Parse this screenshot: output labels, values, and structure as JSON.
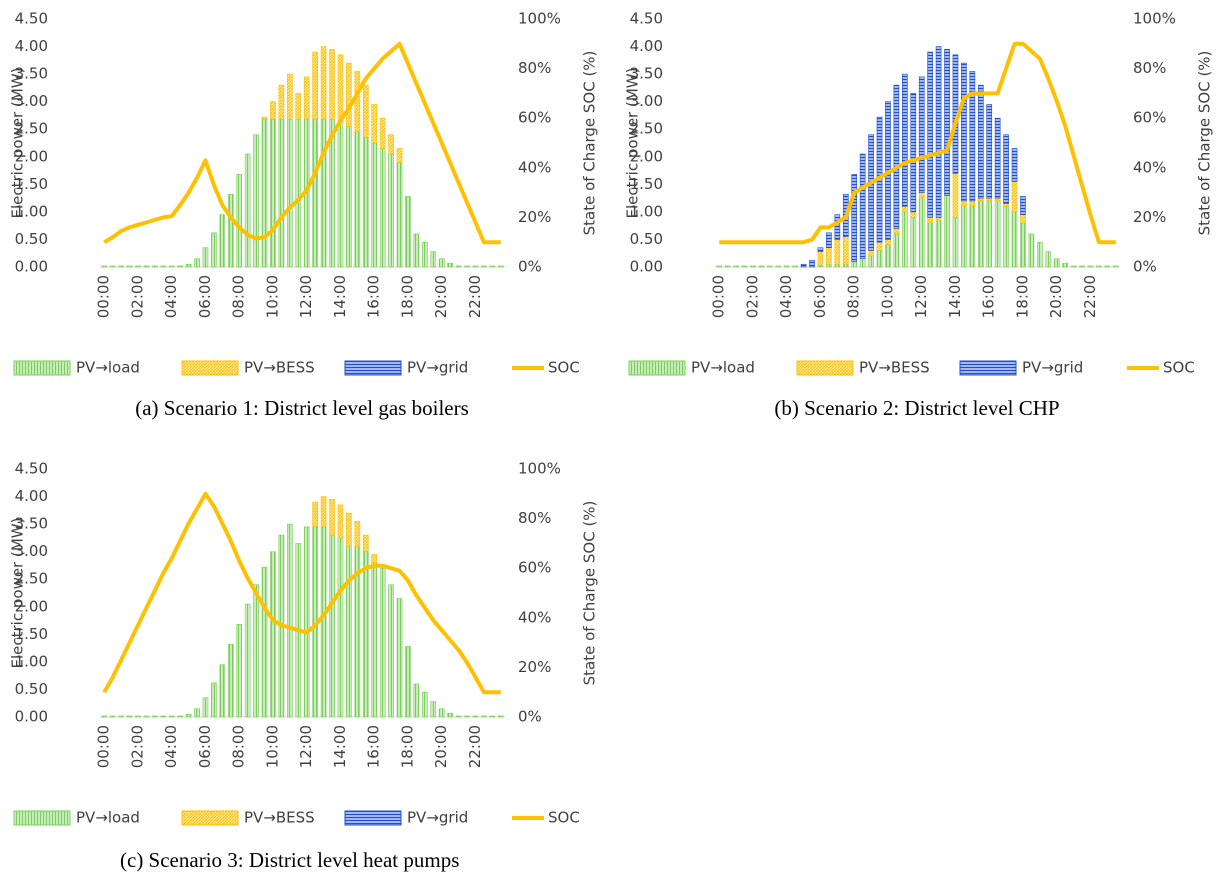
{
  "chart_data": [
    {
      "type": "bar_line",
      "caption": "(a) Scenario 1: District level gas boilers",
      "ylabel": "Electric power (MW)",
      "y2label": "State of Charge SOC (%)",
      "categories": [
        "00:00",
        null,
        null,
        null,
        "02:00",
        null,
        null,
        null,
        "04:00",
        null,
        null,
        null,
        "06:00",
        null,
        null,
        null,
        "08:00",
        null,
        null,
        null,
        "10:00",
        null,
        null,
        null,
        "12:00",
        null,
        null,
        null,
        "14:00",
        null,
        null,
        null,
        "16:00",
        null,
        null,
        null,
        "18:00",
        null,
        null,
        null,
        "20:00",
        null,
        null,
        null,
        "22:00",
        null,
        null,
        null
      ],
      "ylim": [
        0,
        4.5
      ],
      "yticks": [
        {
          "value": 0,
          "label": "0.00"
        },
        {
          "value": 0.5,
          "label": "0.50"
        },
        {
          "value": 1,
          "label": "1.00"
        },
        {
          "value": 1.5,
          "label": "1.50"
        },
        {
          "value": 2,
          "label": "2.00"
        },
        {
          "value": 2.5,
          "label": "2.50"
        },
        {
          "value": 3,
          "label": "3.00"
        },
        {
          "value": 3.5,
          "label": "3.50"
        },
        {
          "value": 4,
          "label": "4.00"
        },
        {
          "value": 4.5,
          "label": "4.50"
        }
      ],
      "y2lim": [
        0,
        100
      ],
      "y2ticks": [
        {
          "value": 0,
          "label": "0%"
        },
        {
          "value": 20,
          "label": "20%"
        },
        {
          "value": 40,
          "label": "40%"
        },
        {
          "value": 60,
          "label": "60%"
        },
        {
          "value": 80,
          "label": "80%"
        },
        {
          "value": 100,
          "label": "100%"
        }
      ],
      "legend": "bottom",
      "series": [
        {
          "name": "PV→load",
          "color": "#7ccf5a",
          "values": [
            0.02,
            0.02,
            0.02,
            0.02,
            0.02,
            0.02,
            0.02,
            0.02,
            0.02,
            0.02,
            0.05,
            0.15,
            0.35,
            0.62,
            0.95,
            1.32,
            1.68,
            2.05,
            2.4,
            2.68,
            2.68,
            2.68,
            2.68,
            2.68,
            2.68,
            2.68,
            2.68,
            2.68,
            2.65,
            2.55,
            2.45,
            2.35,
            2.25,
            2.15,
            2.05,
            1.9,
            1.28,
            0.6,
            0.45,
            0.28,
            0.15,
            0.07,
            0.02,
            0.02,
            0.02,
            0.02,
            0.02,
            0.02
          ]
        },
        {
          "name": "PV→BESS",
          "color": "#ffc000",
          "values": [
            0,
            0,
            0,
            0,
            0,
            0,
            0,
            0,
            0,
            0,
            0,
            0,
            0,
            0,
            0,
            0,
            0,
            0,
            0,
            0.04,
            0.32,
            0.62,
            0.82,
            0.47,
            0.77,
            1.22,
            1.32,
            1.27,
            1.2,
            1.15,
            1.1,
            0.95,
            0.7,
            0.55,
            0.35,
            0.25,
            0,
            0,
            0,
            0,
            0,
            0,
            0,
            0,
            0,
            0,
            0,
            0
          ]
        },
        {
          "name": "PV→grid",
          "color": "#1f4fd1",
          "values": [
            0,
            0,
            0,
            0,
            0,
            0,
            0,
            0,
            0,
            0,
            0,
            0,
            0,
            0,
            0,
            0,
            0,
            0,
            0,
            0,
            0,
            0,
            0,
            0,
            0,
            0,
            0,
            0,
            0,
            0,
            0,
            0,
            0,
            0,
            0,
            0,
            0,
            0,
            0,
            0,
            0,
            0,
            0,
            0,
            0,
            0,
            0,
            0
          ]
        },
        {
          "name": "SOC",
          "color": "#ffc000",
          "axis": "y2",
          "values": [
            10,
            12,
            14.5,
            16,
            17,
            18,
            19,
            20,
            20.5,
            25,
            30,
            36,
            43,
            33,
            25,
            20,
            16,
            13,
            11.5,
            12,
            15,
            20,
            24,
            27,
            31,
            38,
            46,
            53,
            59,
            64,
            70,
            76,
            80,
            84,
            87,
            90,
            82,
            74,
            66,
            58,
            50,
            42,
            34,
            26,
            18,
            10,
            10,
            10
          ]
        }
      ]
    },
    {
      "type": "bar_line",
      "caption": "(b) Scenario 2: District level CHP",
      "ylabel": "Electric power (MW)",
      "y2label": "State of Charge SOC (%)",
      "categories": [
        "00:00",
        null,
        null,
        null,
        "02:00",
        null,
        null,
        null,
        "04:00",
        null,
        null,
        null,
        "06:00",
        null,
        null,
        null,
        "08:00",
        null,
        null,
        null,
        "10:00",
        null,
        null,
        null,
        "12:00",
        null,
        null,
        null,
        "14:00",
        null,
        null,
        null,
        "16:00",
        null,
        null,
        null,
        "18:00",
        null,
        null,
        null,
        "20:00",
        null,
        null,
        null,
        "22:00",
        null,
        null,
        null
      ],
      "ylim": [
        0,
        4.5
      ],
      "yticks": [
        {
          "value": 0,
          "label": "0.00"
        },
        {
          "value": 0.5,
          "label": "0.50"
        },
        {
          "value": 1,
          "label": "1.00"
        },
        {
          "value": 1.5,
          "label": "1.50"
        },
        {
          "value": 2,
          "label": "2.00"
        },
        {
          "value": 2.5,
          "label": "2.50"
        },
        {
          "value": 3,
          "label": "3.00"
        },
        {
          "value": 3.5,
          "label": "3.50"
        },
        {
          "value": 4,
          "label": "4.00"
        },
        {
          "value": 4.5,
          "label": "4.50"
        }
      ],
      "y2lim": [
        0,
        100
      ],
      "y2ticks": [
        {
          "value": 0,
          "label": "0%"
        },
        {
          "value": 20,
          "label": "20%"
        },
        {
          "value": 40,
          "label": "40%"
        },
        {
          "value": 60,
          "label": "60%"
        },
        {
          "value": 80,
          "label": "80%"
        },
        {
          "value": 100,
          "label": "100%"
        }
      ],
      "legend": "bottom",
      "series": [
        {
          "name": "PV→load",
          "color": "#7ccf5a",
          "values": [
            0.02,
            0.02,
            0.02,
            0.02,
            0.02,
            0.02,
            0.02,
            0.02,
            0.02,
            0.02,
            0,
            0,
            0.03,
            0.05,
            0.05,
            0.05,
            0.1,
            0.15,
            0.2,
            0.3,
            0.4,
            0.6,
            1.0,
            0.9,
            1.25,
            0.8,
            0.85,
            1.3,
            0.9,
            1.1,
            1.1,
            1.2,
            1.2,
            1.2,
            1.1,
            1.0,
            0.8,
            0.6,
            0.45,
            0.28,
            0.15,
            0.07,
            0.02,
            0.02,
            0.02,
            0.02,
            0.02,
            0.02
          ]
        },
        {
          "name": "PV→BESS",
          "color": "#ffc000",
          "values": [
            0,
            0,
            0,
            0,
            0,
            0,
            0,
            0,
            0,
            0,
            0,
            0,
            0.25,
            0.3,
            0.45,
            0.5,
            0,
            0,
            0.1,
            0.15,
            0.1,
            0.1,
            0.1,
            0.1,
            0.1,
            0.1,
            0.05,
            0,
            0.8,
            0.1,
            0.1,
            0.05,
            0.05,
            0.05,
            0.05,
            0.55,
            0.15,
            0,
            0,
            0,
            0,
            0,
            0,
            0,
            0,
            0,
            0,
            0
          ]
        },
        {
          "name": "PV→grid",
          "color": "#1f4fd1",
          "values": [
            0,
            0,
            0,
            0,
            0,
            0,
            0,
            0,
            0,
            0,
            0.05,
            0.12,
            0.07,
            0.27,
            0.45,
            0.77,
            1.58,
            1.9,
            2.1,
            2.27,
            2.5,
            2.6,
            2.4,
            2.15,
            2.1,
            3.0,
            3.1,
            2.65,
            2.15,
            2.5,
            2.35,
            2.05,
            1.7,
            1.45,
            1.25,
            0.6,
            0.33,
            0,
            0,
            0,
            0,
            0,
            0,
            0,
            0,
            0,
            0,
            0
          ]
        },
        {
          "name": "SOC",
          "color": "#ffc000",
          "axis": "y2",
          "values": [
            10,
            10,
            10,
            10,
            10,
            10,
            10,
            10,
            10,
            10,
            10,
            11,
            16,
            16,
            18,
            20,
            30,
            32,
            34,
            36,
            38,
            40,
            42,
            43,
            44,
            45,
            46,
            47,
            58,
            68,
            70,
            70,
            70,
            70,
            80,
            90,
            90,
            87,
            84,
            76,
            67,
            57,
            45,
            33,
            21,
            10,
            10,
            10
          ]
        }
      ]
    },
    {
      "type": "bar_line",
      "caption": "(c) Scenario 3: District level heat pumps",
      "ylabel": "Electric power (MW)",
      "y2label": "State of Charge SOC (%)",
      "categories": [
        "00:00",
        null,
        null,
        null,
        "02:00",
        null,
        null,
        null,
        "04:00",
        null,
        null,
        null,
        "06:00",
        null,
        null,
        null,
        "08:00",
        null,
        null,
        null,
        "10:00",
        null,
        null,
        null,
        "12:00",
        null,
        null,
        null,
        "14:00",
        null,
        null,
        null,
        "16:00",
        null,
        null,
        null,
        "18:00",
        null,
        null,
        null,
        "20:00",
        null,
        null,
        null,
        "22:00",
        null,
        null,
        null
      ],
      "ylim": [
        0,
        4.5
      ],
      "yticks": [
        {
          "value": 0,
          "label": "0.00"
        },
        {
          "value": 0.5,
          "label": "0.50"
        },
        {
          "value": 1,
          "label": "1.00"
        },
        {
          "value": 1.5,
          "label": "1.50"
        },
        {
          "value": 2,
          "label": "2.00"
        },
        {
          "value": 2.5,
          "label": "2.50"
        },
        {
          "value": 3,
          "label": "3.00"
        },
        {
          "value": 3.5,
          "label": "3.50"
        },
        {
          "value": 4,
          "label": "4.00"
        },
        {
          "value": 4.5,
          "label": "4.50"
        }
      ],
      "y2lim": [
        0,
        100
      ],
      "y2ticks": [
        {
          "value": 0,
          "label": "0%"
        },
        {
          "value": 20,
          "label": "20%"
        },
        {
          "value": 40,
          "label": "40%"
        },
        {
          "value": 60,
          "label": "60%"
        },
        {
          "value": 80,
          "label": "80%"
        },
        {
          "value": 100,
          "label": "100%"
        }
      ],
      "legend": "bottom",
      "series": [
        {
          "name": "PV→load",
          "color": "#7ccf5a",
          "values": [
            0.02,
            0.02,
            0.02,
            0.02,
            0.02,
            0.02,
            0.02,
            0.02,
            0.02,
            0.02,
            0.05,
            0.15,
            0.35,
            0.62,
            0.95,
            1.32,
            1.68,
            2.05,
            2.4,
            2.72,
            3.0,
            3.3,
            3.5,
            3.15,
            3.45,
            3.45,
            3.45,
            3.3,
            3.25,
            3.1,
            3.1,
            3.0,
            2.8,
            2.7,
            2.4,
            2.15,
            1.28,
            0.6,
            0.45,
            0.28,
            0.15,
            0.07,
            0.02,
            0.02,
            0.02,
            0.02,
            0.02,
            0.02
          ]
        },
        {
          "name": "PV→BESS",
          "color": "#ffc000",
          "values": [
            0,
            0,
            0,
            0,
            0,
            0,
            0,
            0,
            0,
            0,
            0,
            0,
            0,
            0,
            0,
            0,
            0,
            0,
            0,
            0,
            0,
            0,
            0,
            0,
            0,
            0.45,
            0.55,
            0.65,
            0.6,
            0.6,
            0.45,
            0.3,
            0.15,
            0,
            0,
            0,
            0,
            0,
            0,
            0,
            0,
            0,
            0,
            0,
            0,
            0,
            0,
            0
          ]
        },
        {
          "name": "PV→grid",
          "color": "#1f4fd1",
          "values": [
            0,
            0,
            0,
            0,
            0,
            0,
            0,
            0,
            0,
            0,
            0,
            0,
            0,
            0,
            0,
            0,
            0,
            0,
            0,
            0,
            0,
            0,
            0,
            0,
            0,
            0,
            0,
            0,
            0,
            0,
            0,
            0,
            0,
            0,
            0,
            0,
            0,
            0,
            0,
            0,
            0,
            0,
            0,
            0,
            0,
            0,
            0,
            0
          ]
        },
        {
          "name": "SOC",
          "color": "#ffc000",
          "axis": "y2",
          "values": [
            10,
            16,
            23,
            30,
            37,
            44,
            51,
            58,
            64,
            71,
            78,
            84,
            90,
            85,
            78,
            71,
            63,
            56,
            50,
            44,
            39,
            37,
            36,
            35,
            34,
            37,
            41,
            46,
            51,
            55,
            58,
            60,
            61,
            61,
            60,
            59,
            55,
            49,
            44,
            39,
            35,
            31,
            27,
            22,
            16,
            10,
            10,
            10
          ]
        }
      ]
    }
  ]
}
